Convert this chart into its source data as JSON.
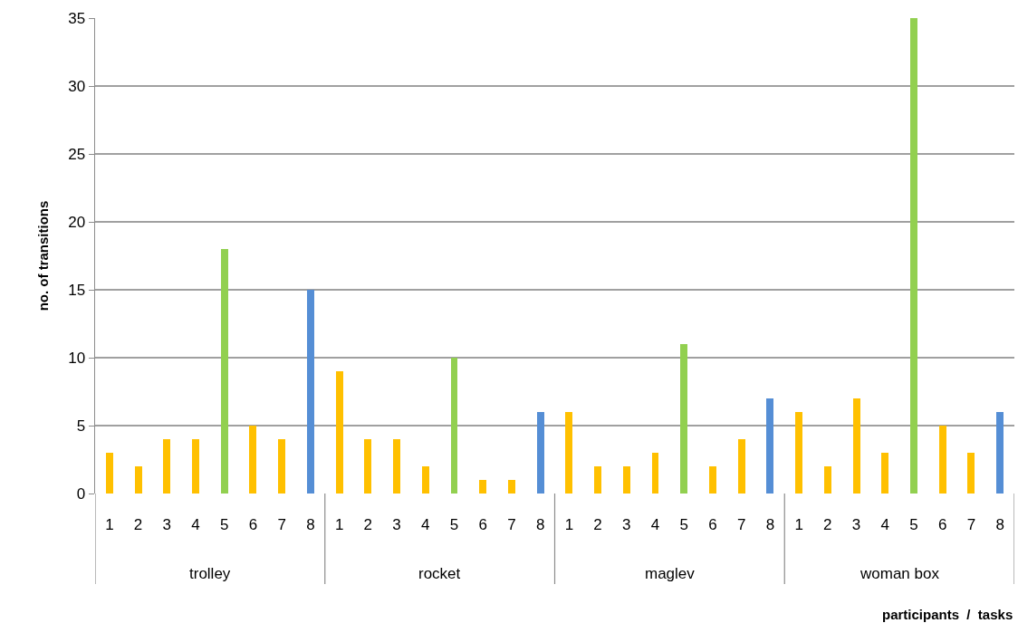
{
  "chart_data": {
    "type": "bar",
    "ylabel": "no. of transitions",
    "categories": [
      "1",
      "2",
      "3",
      "4",
      "5",
      "6",
      "7",
      "8",
      "1",
      "2",
      "3",
      "4",
      "5",
      "6",
      "7",
      "8",
      "1",
      "2",
      "3",
      "4",
      "5",
      "6",
      "7",
      "8",
      "1",
      "2",
      "3",
      "4",
      "5",
      "6",
      "7",
      "8"
    ],
    "values": [
      3,
      2,
      4,
      4,
      18,
      5,
      4,
      15,
      9,
      4,
      4,
      2,
      10,
      1,
      1,
      6,
      6,
      2,
      2,
      3,
      11,
      2,
      4,
      7,
      6,
      2,
      7,
      3,
      35,
      5,
      3,
      6
    ],
    "colors": [
      "#ffc000",
      "#ffc000",
      "#ffc000",
      "#ffc000",
      "#92d050",
      "#ffc000",
      "#ffc000",
      "#558ed5",
      "#ffc000",
      "#ffc000",
      "#ffc000",
      "#ffc000",
      "#92d050",
      "#ffc000",
      "#ffc000",
      "#558ed5",
      "#ffc000",
      "#ffc000",
      "#ffc000",
      "#ffc000",
      "#92d050",
      "#ffc000",
      "#ffc000",
      "#558ed5",
      "#ffc000",
      "#ffc000",
      "#ffc000",
      "#ffc000",
      "#92d050",
      "#ffc000",
      "#ffc000",
      "#558ed5"
    ],
    "annotations": [
      "trolley",
      "rocket",
      "maglev",
      "woman box",
      "participants  /  tasks"
    ],
    "ylim": [
      0,
      35
    ],
    "yticks": [
      0,
      5,
      10,
      15,
      20,
      25,
      30,
      35
    ],
    "grid": "y",
    "legend": false
  }
}
